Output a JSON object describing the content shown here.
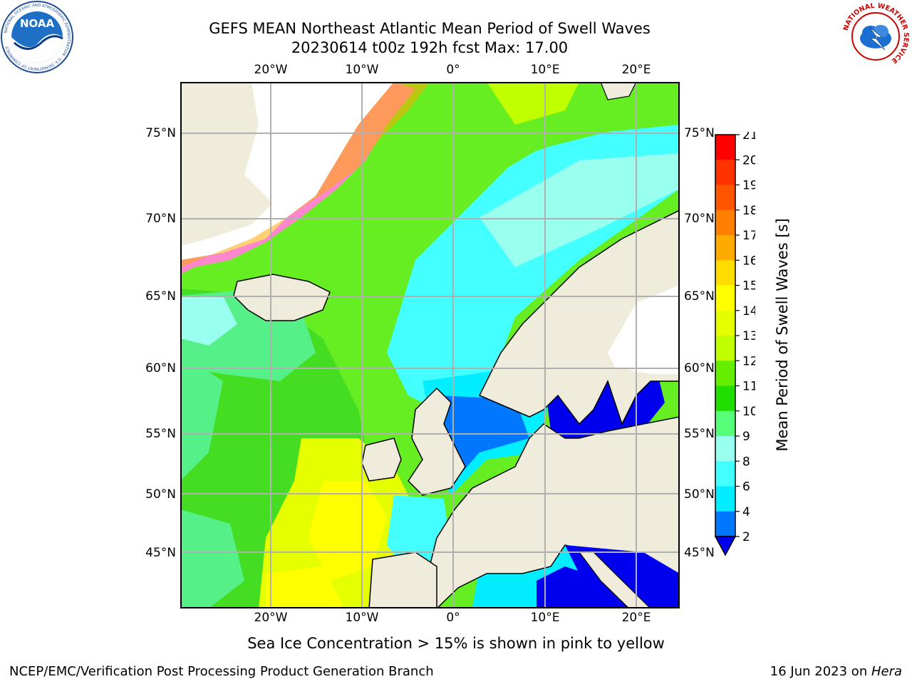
{
  "header": {
    "title_line1": "GEFS MEAN Northeast Atlantic Mean Period of Swell Waves",
    "title_line2": "20230614 t00z 192h fcst   Max: 17.00"
  },
  "logos": {
    "left": "NOAA",
    "left_ring_text": "NATIONAL OCEANIC AND ATMOSPHERIC ADMINISTRATION · U.S. DEPARTMENT OF COMMERCE",
    "right_ring_text": "NATIONAL WEATHER SERVICE"
  },
  "map": {
    "lon_labels": [
      "20°W",
      "10°W",
      "0°",
      "10°E",
      "20°E"
    ],
    "lat_labels": [
      "75°N",
      "70°N",
      "65°N",
      "60°N",
      "55°N",
      "50°N",
      "45°N"
    ],
    "colors": {
      "land": "#efecdc",
      "ice_free": "#ffffff",
      "grid": "#b0b0b0",
      "coast": "#000000"
    }
  },
  "colorbar": {
    "label": "Mean Period of Swell Waves [s]",
    "tick_labels": [
      "21",
      "20",
      "19",
      "18",
      "17",
      "16",
      "15",
      "14",
      "13",
      "12",
      "11",
      "10",
      "9",
      "8",
      "6",
      "4",
      "2"
    ],
    "bins": [
      {
        "range": [
          20,
          21
        ],
        "color": "#ff0000"
      },
      {
        "range": [
          19,
          20
        ],
        "color": "#ff3300"
      },
      {
        "range": [
          18,
          19
        ],
        "color": "#ff5500"
      },
      {
        "range": [
          17,
          18
        ],
        "color": "#ff8000"
      },
      {
        "range": [
          16,
          17
        ],
        "color": "#ffaa00"
      },
      {
        "range": [
          15,
          16
        ],
        "color": "#ffdd00"
      },
      {
        "range": [
          14,
          15
        ],
        "color": "#ffff00"
      },
      {
        "range": [
          13,
          14
        ],
        "color": "#e6ff00"
      },
      {
        "range": [
          12,
          13
        ],
        "color": "#c0ff00"
      },
      {
        "range": [
          11,
          12
        ],
        "color": "#66ee00"
      },
      {
        "range": [
          10,
          11
        ],
        "color": "#22dd00"
      },
      {
        "range": [
          9,
          10
        ],
        "color": "#55ff77"
      },
      {
        "range": [
          8,
          9
        ],
        "color": "#99ffee"
      },
      {
        "range": [
          6,
          8
        ],
        "color": "#44ffff"
      },
      {
        "range": [
          4,
          6
        ],
        "color": "#00eeff"
      },
      {
        "range": [
          2,
          4
        ],
        "color": "#0077ff"
      }
    ],
    "under_color": "#0000ee"
  },
  "notes": {
    "ice": "Sea Ice Concentration > 15% is shown in pink to yellow"
  },
  "footer": {
    "left": "NCEP/EMC/Verification Post Processing Product Generation Branch",
    "right_date": "16 Jun 2023 on ",
    "right_host": "Hera"
  }
}
